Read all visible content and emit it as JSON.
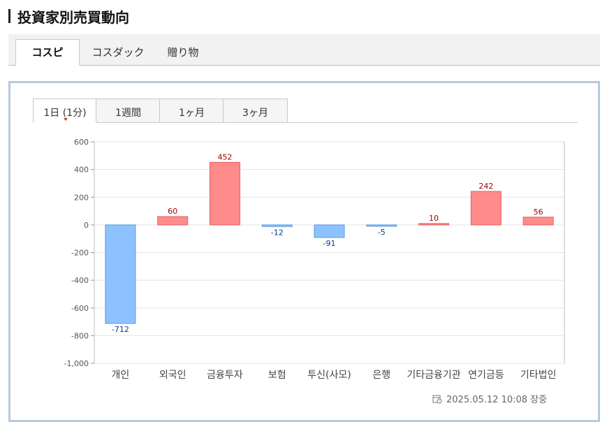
{
  "page": {
    "title": "投資家別売買動向"
  },
  "market_tabs": [
    {
      "label": "コスピ",
      "active": true
    },
    {
      "label": "コスダック",
      "active": false
    },
    {
      "label": "贈り物",
      "active": false
    }
  ],
  "period_tabs": [
    {
      "label": "1日 (1分)",
      "active": true
    },
    {
      "label": "1週間",
      "active": false
    },
    {
      "label": "1ヶ月",
      "active": false
    },
    {
      "label": "3ヶ月",
      "active": false
    }
  ],
  "timestamp": "2025.05.12 10:08 장중",
  "colors": {
    "positive": "#ff8b8b",
    "positive_label": "#a40000",
    "negative": "#8cc2ff",
    "negative_label": "#003f8f",
    "accent_border": "#b8c9de"
  },
  "icons": {
    "timestamp": "calendar-clock-icon"
  },
  "chart_data": {
    "type": "bar",
    "categories": [
      "개인",
      "외국인",
      "금융투자",
      "보험",
      "투신(사모)",
      "은행",
      "기타금융기관",
      "연기금등",
      "기타법인"
    ],
    "values": [
      -712,
      60,
      452,
      -12,
      -91,
      -5,
      10,
      242,
      56
    ],
    "data_labels": [
      "-712",
      "60",
      "452",
      "-12",
      "-91",
      "-5",
      "10",
      "242",
      "56"
    ],
    "ylim": [
      -1000,
      600
    ],
    "yticks": [
      600,
      400,
      200,
      0,
      -200,
      -400,
      -600,
      -800,
      -1000
    ],
    "ytick_labels": [
      "600",
      "400",
      "200",
      "0",
      "-200",
      "-400",
      "-600",
      "-800",
      "-1,000"
    ],
    "grid": true,
    "title": "",
    "xlabel": "",
    "ylabel": ""
  }
}
